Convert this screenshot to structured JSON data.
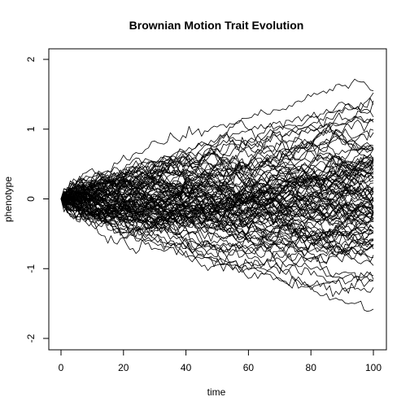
{
  "chart_data": {
    "type": "line",
    "title": "Brownian Motion Trait Evolution",
    "xlabel": "time",
    "ylabel": "phenotype",
    "xlim": [
      0,
      100
    ],
    "ylim": [
      -2,
      2
    ],
    "xticks": [
      0,
      20,
      40,
      60,
      80,
      100
    ],
    "yticks": [
      -2,
      -1,
      0,
      1,
      2
    ],
    "x_tick_labels": [
      "0",
      "20",
      "40",
      "60",
      "80",
      "100"
    ],
    "y_tick_labels": [
      "-2",
      "-1",
      "0",
      "1",
      "2"
    ],
    "line_color": "#000000",
    "grid": false,
    "legend": "none",
    "n_series": 100,
    "n_steps": 100,
    "start_value": 0,
    "observed_range_at_end": [
      -1.58,
      1.55
    ],
    "series": [
      {
        "x": [
          0,
          10,
          20,
          30,
          40,
          50,
          60,
          70,
          80,
          90,
          95,
          100
        ],
        "values": [
          0,
          0.25,
          0.55,
          0.78,
          0.92,
          1.02,
          1.15,
          1.3,
          1.45,
          1.6,
          1.68,
          1.55
        ]
      },
      {
        "x": [
          0,
          10,
          20,
          30,
          40,
          50,
          60,
          70,
          80,
          90,
          95,
          100
        ],
        "values": [
          0,
          -0.2,
          -0.45,
          -0.62,
          -0.8,
          -0.92,
          -1.05,
          -1.15,
          -1.3,
          -1.45,
          -1.52,
          -1.58
        ]
      },
      {
        "x": [
          0,
          10,
          20,
          30,
          40,
          50,
          60,
          70,
          80,
          90,
          100
        ],
        "values": [
          0,
          0.15,
          0.35,
          0.5,
          0.7,
          0.85,
          0.98,
          1.08,
          1.2,
          1.25,
          1.35
        ]
      },
      {
        "x": [
          0,
          10,
          20,
          30,
          40,
          50,
          60,
          70,
          80,
          90,
          100
        ],
        "values": [
          0,
          -0.18,
          -0.38,
          -0.55,
          -0.7,
          -0.85,
          -1.0,
          -1.12,
          -1.22,
          -1.3,
          -1.27
        ]
      },
      {
        "x": [
          0,
          10,
          20,
          30,
          40,
          50,
          60,
          70,
          80,
          90,
          100
        ],
        "values": [
          0,
          0.1,
          0.25,
          0.4,
          0.55,
          0.7,
          0.82,
          0.9,
          1.0,
          1.05,
          1.1
        ]
      },
      {
        "x": [
          0,
          10,
          20,
          30,
          40,
          50,
          60,
          70,
          80,
          90,
          100
        ],
        "values": [
          0,
          -0.1,
          -0.25,
          -0.4,
          -0.55,
          -0.7,
          -0.82,
          -0.9,
          -0.98,
          -1.05,
          -1.1
        ]
      }
    ]
  }
}
